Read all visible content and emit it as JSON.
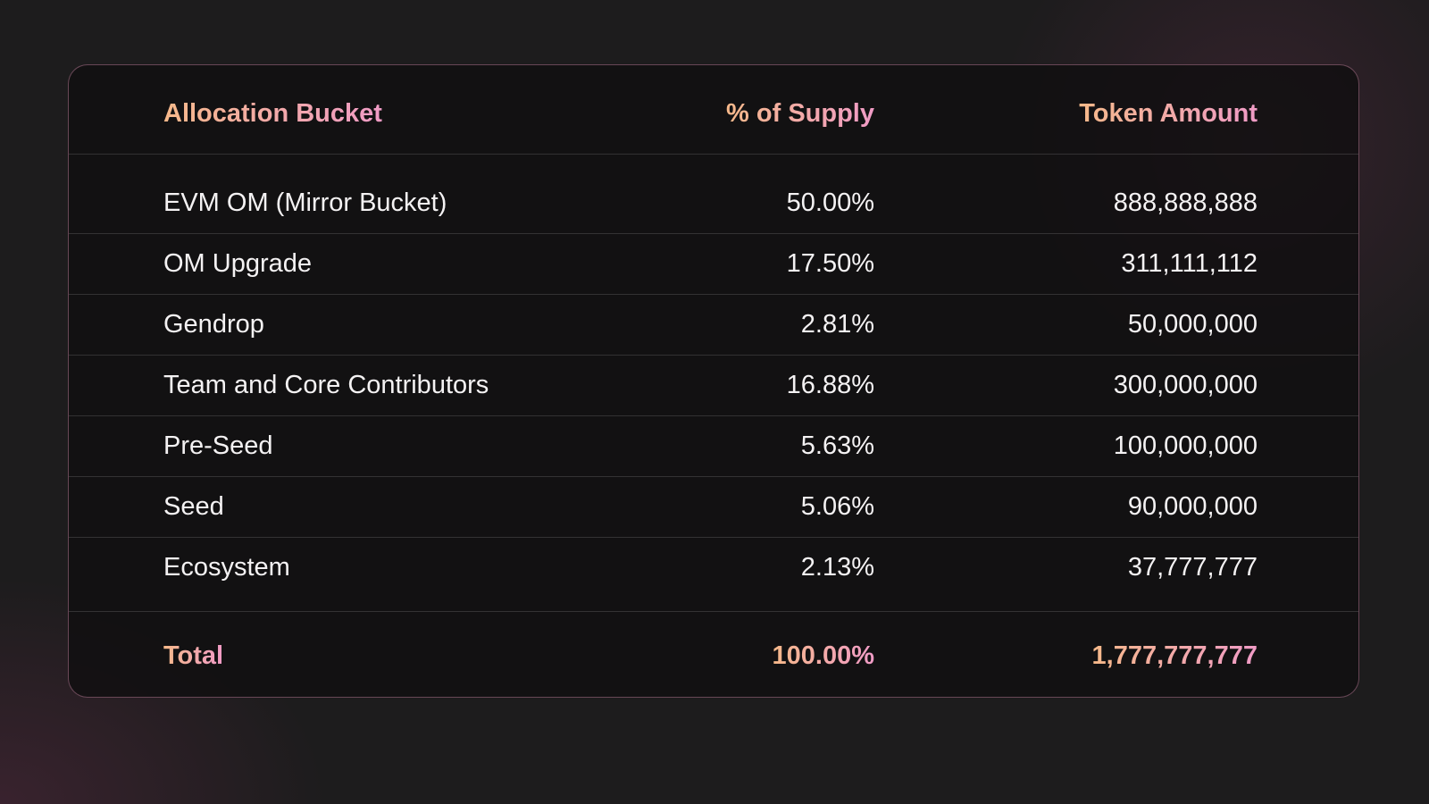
{
  "table": {
    "header": [
      "Allocation Bucket",
      "% of Supply",
      "Token Amount"
    ],
    "rows": [
      [
        "EVM OM (Mirror Bucket)",
        "50.00%",
        "888,888,888"
      ],
      [
        "OM Upgrade",
        "17.50%",
        "311,111,112"
      ],
      [
        "Gendrop",
        "2.81%",
        "50,000,000"
      ],
      [
        "Team and Core Contributors",
        "16.88%",
        "300,000,000"
      ],
      [
        "Pre-Seed",
        "5.63%",
        "100,000,000"
      ],
      [
        "Seed",
        "5.06%",
        "90,000,000"
      ],
      [
        "Ecosystem",
        "2.13%",
        "37,777,777"
      ]
    ],
    "total": [
      "Total",
      "100.00%",
      "1,777,777,777"
    ]
  }
}
